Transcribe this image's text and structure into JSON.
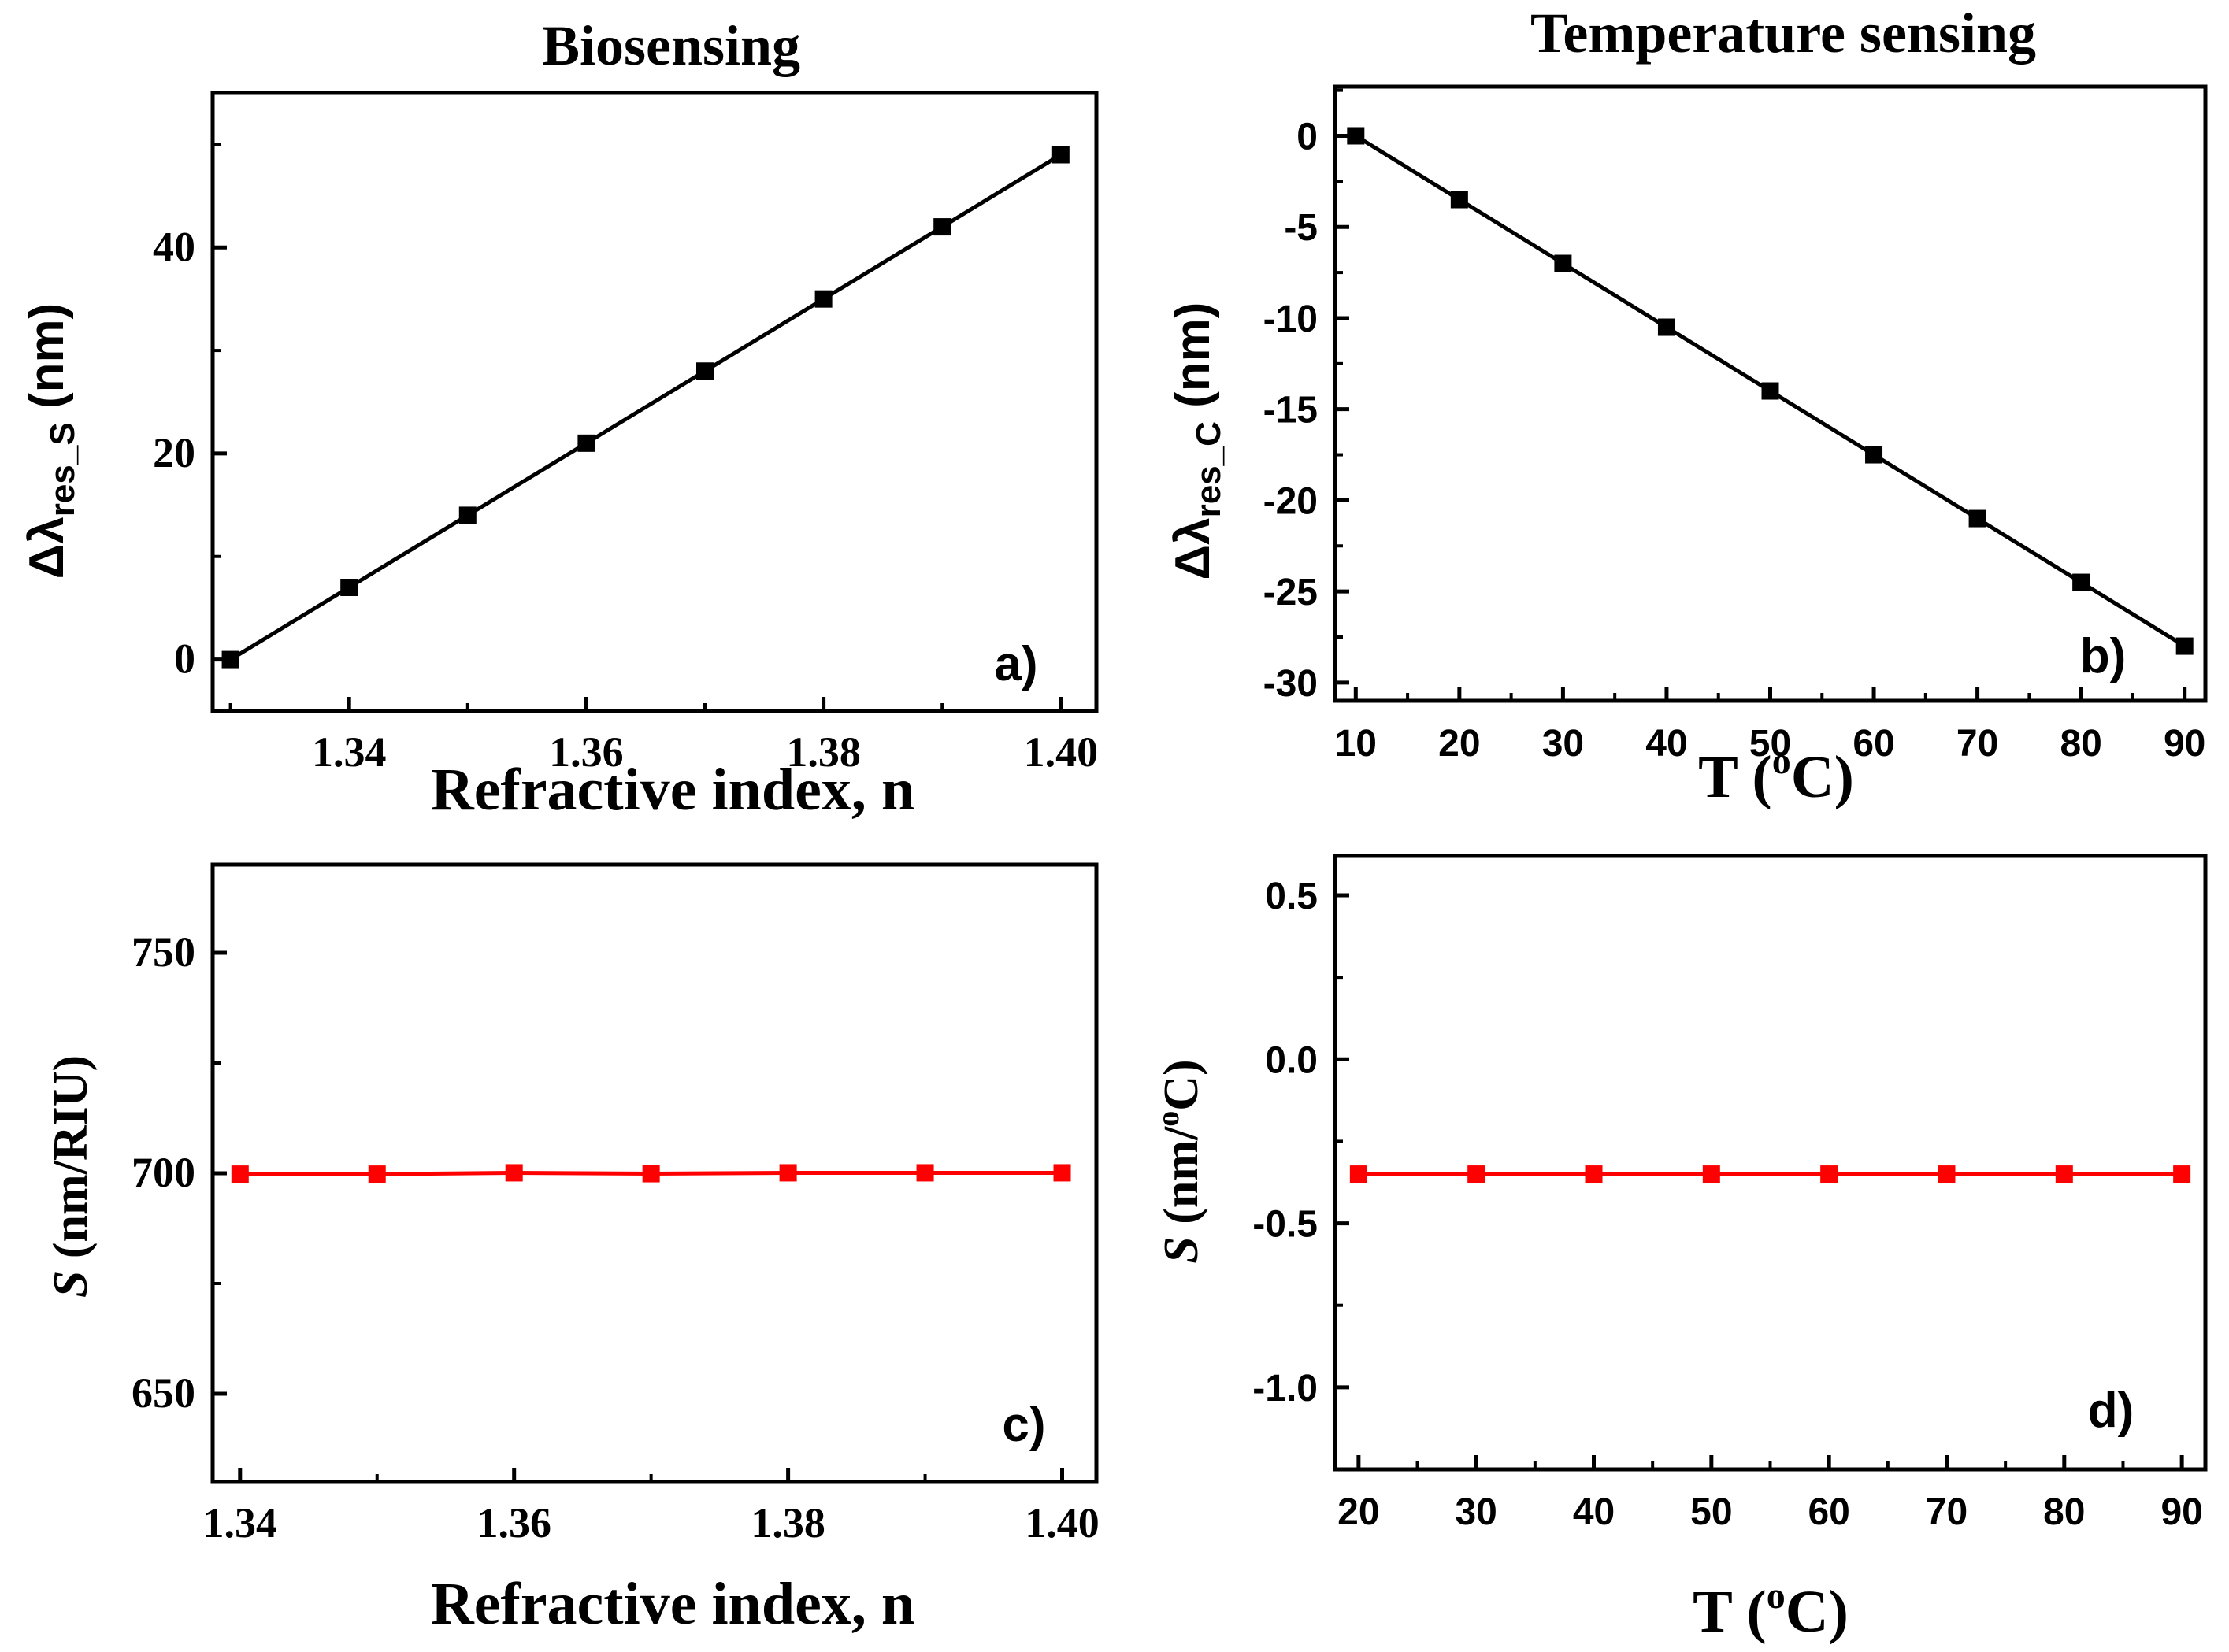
{
  "chart_data": [
    {
      "id": "a",
      "type": "line",
      "title": "Biosensing",
      "panel_label": "a)",
      "xlabel": "Refractive index, n",
      "ylabel": "Δλres_S (nm)",
      "ylabel_parts": {
        "main": "Δλ",
        "sub": "res_S",
        "unit": " (nm)"
      },
      "xlim": [
        1.3285,
        1.403
      ],
      "ylim": [
        -5,
        55
      ],
      "xticks": [
        1.34,
        1.36,
        1.38,
        1.4
      ],
      "xtick_labels": [
        "1.34",
        "1.36",
        "1.38",
        "1.40"
      ],
      "yticks": [
        0,
        20,
        40
      ],
      "ytick_labels": [
        "0",
        "20",
        "40"
      ],
      "series": [
        {
          "name": "Δλres_S",
          "color": "#000000",
          "x": [
            1.33,
            1.34,
            1.35,
            1.36,
            1.37,
            1.38,
            1.39,
            1.4
          ],
          "y": [
            0,
            7,
            14,
            21,
            28,
            35,
            42,
            49
          ]
        }
      ]
    },
    {
      "id": "b",
      "type": "line",
      "title": "Temperature sensing",
      "panel_label": "b)",
      "xlabel": "T (oC)",
      "xlabel_parts": {
        "pre": "T (",
        "sup": "o",
        "post": "C)"
      },
      "ylabel": "Δλres_C (nm)",
      "ylabel_parts": {
        "main": "Δλ",
        "sub": "res_C",
        "unit": " (nm)"
      },
      "xlim": [
        8,
        92
      ],
      "ylim": [
        -31,
        2.7
      ],
      "xticks": [
        10,
        20,
        30,
        40,
        50,
        60,
        70,
        80,
        90
      ],
      "xtick_labels": [
        "10",
        "20",
        "30",
        "40",
        "50",
        "60",
        "70",
        "80",
        "90"
      ],
      "yticks": [
        0,
        -5,
        -10,
        -15,
        -20,
        -25,
        -30
      ],
      "ytick_labels": [
        "0",
        "-5",
        "-10",
        "-15",
        "-20",
        "-25",
        "-30"
      ],
      "series": [
        {
          "name": "Δλres_C",
          "color": "#000000",
          "x": [
            10,
            20,
            30,
            40,
            50,
            60,
            70,
            80,
            90
          ],
          "y": [
            0,
            -3.5,
            -7,
            -10.5,
            -14,
            -17.5,
            -21,
            -24.5,
            -28
          ]
        }
      ]
    },
    {
      "id": "c",
      "type": "line",
      "title": "",
      "panel_label": "c)",
      "xlabel": "Refractive index, n",
      "ylabel": "S (nm/RIU)",
      "ylabel_parts": {
        "main": "S",
        "unit": " (nm/RIU)"
      },
      "xlim": [
        1.338,
        1.4025
      ],
      "ylim": [
        630,
        770
      ],
      "xticks": [
        1.34,
        1.36,
        1.38,
        1.4
      ],
      "xtick_labels": [
        "1.34",
        "1.36",
        "1.38",
        "1.40"
      ],
      "yticks": [
        650,
        700,
        750
      ],
      "ytick_labels": [
        "650",
        "700",
        "750"
      ],
      "series": [
        {
          "name": "S",
          "color": "#ff0000",
          "x": [
            1.34,
            1.35,
            1.36,
            1.37,
            1.38,
            1.39,
            1.4
          ],
          "y": [
            699.8,
            699.8,
            700.1,
            699.9,
            700.1,
            700.1,
            700.1
          ]
        }
      ]
    },
    {
      "id": "d",
      "type": "line",
      "title": "",
      "panel_label": "d)",
      "xlabel": "T (oC)",
      "xlabel_parts": {
        "pre": "T (",
        "sup": "o",
        "post": "C)"
      },
      "ylabel": "S (nm/oC)",
      "ylabel_parts": {
        "main": "S",
        "unit_pre": " (nm/",
        "sup": "o",
        "unit_post": "C)"
      },
      "xlim": [
        18,
        92
      ],
      "ylim": [
        -1.25,
        0.62
      ],
      "xticks": [
        20,
        30,
        40,
        50,
        60,
        70,
        80,
        90
      ],
      "xtick_labels": [
        "20",
        "30",
        "40",
        "50",
        "60",
        "70",
        "80",
        "90"
      ],
      "yticks": [
        0.5,
        0.0,
        -0.5,
        -1.0
      ],
      "ytick_labels": [
        "0.5",
        "0.0",
        "-0.5",
        "-1.0"
      ],
      "series": [
        {
          "name": "S",
          "color": "#ff0000",
          "x": [
            20,
            30,
            40,
            50,
            60,
            70,
            80,
            90
          ],
          "y": [
            -0.35,
            -0.35,
            -0.35,
            -0.35,
            -0.35,
            -0.35,
            -0.35,
            -0.35
          ]
        }
      ]
    }
  ]
}
